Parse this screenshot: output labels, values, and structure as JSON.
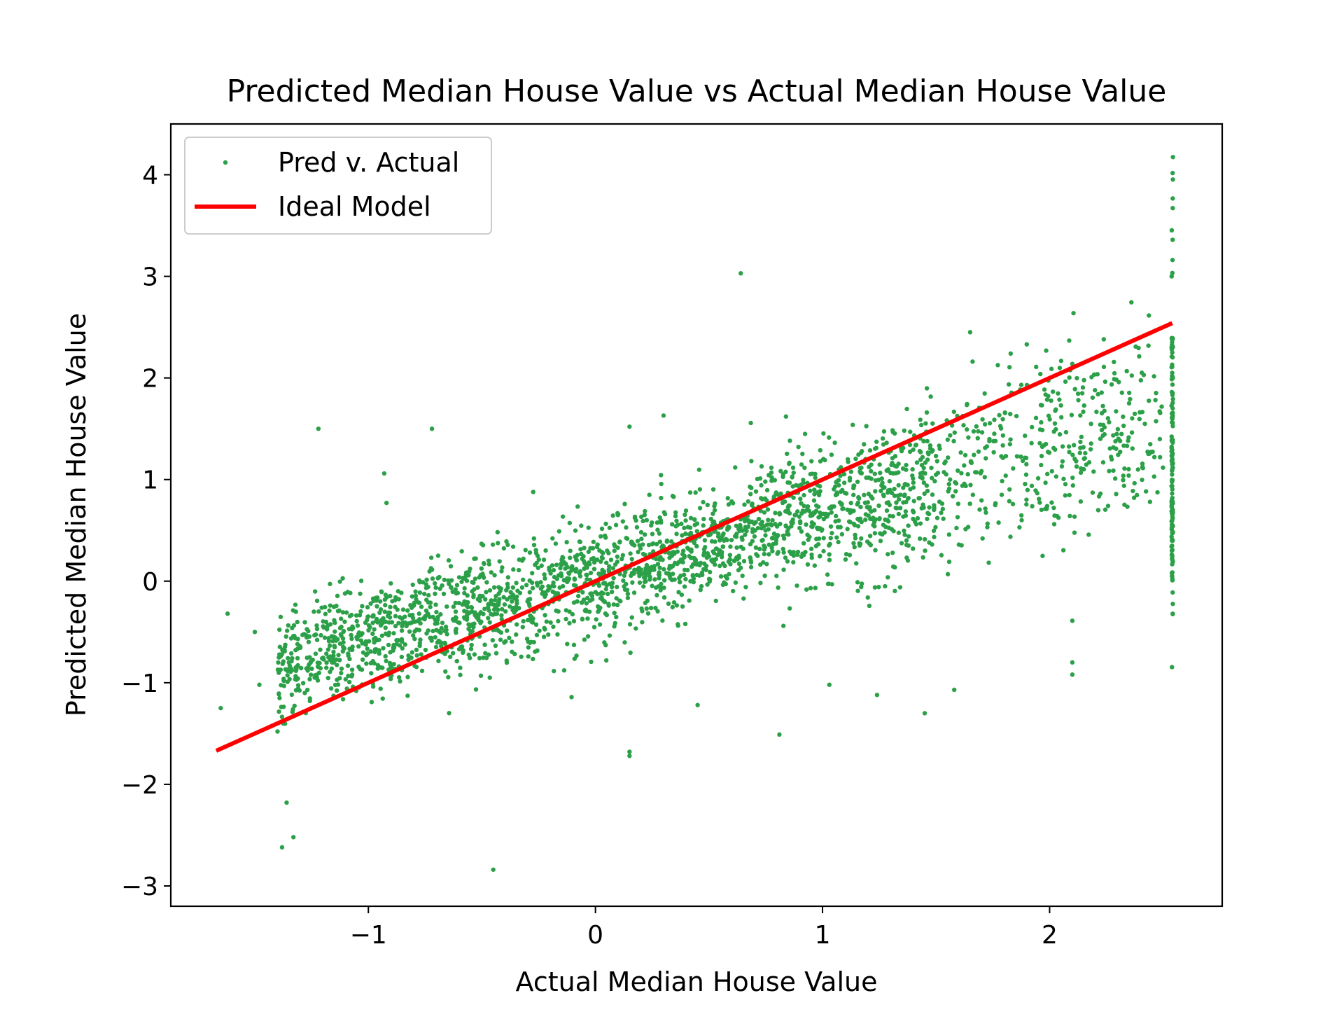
{
  "chart_data": {
    "type": "scatter",
    "title": "Predicted Median House Value vs Actual Median House Value",
    "xlabel": "Actual Median House Value",
    "ylabel": "Predicted Median House Value",
    "xlim": [
      -1.87,
      2.76
    ],
    "ylim": [
      -3.2,
      4.5
    ],
    "xticks": [
      -1,
      0,
      1,
      2
    ],
    "yticks": [
      -3,
      -2,
      -1,
      0,
      1,
      2,
      3,
      4
    ],
    "xtick_labels": [
      "−1",
      "0",
      "1",
      "2"
    ],
    "ytick_labels": [
      "−3",
      "−2",
      "−1",
      "0",
      "1",
      "2",
      "3",
      "4"
    ],
    "grid": false,
    "legend_position": "top-left",
    "series": [
      {
        "name": "Pred v. Actual",
        "kind": "scatter",
        "color": "#2ca048",
        "description_cloud": {
          "x_range": [
            -1.67,
            2.54
          ],
          "trend": "y ≈ 0.6x + 0.05 with spread increasing toward high x",
          "capped_column_x": 2.54,
          "capped_column_y_range": [
            -0.85,
            4.18
          ]
        },
        "points": [
          [
            -1.65,
            -1.25
          ],
          [
            -1.62,
            -0.32
          ],
          [
            -1.5,
            -0.5
          ],
          [
            -1.48,
            -1.02
          ],
          [
            -1.4,
            -1.48
          ],
          [
            -1.38,
            -2.62
          ],
          [
            -1.36,
            -2.18
          ],
          [
            -1.33,
            -2.52
          ],
          [
            -1.22,
            1.5
          ],
          [
            -0.93,
            1.06
          ],
          [
            -0.92,
            0.77
          ],
          [
            -0.72,
            1.5
          ],
          [
            -0.45,
            -2.84
          ],
          [
            0.15,
            1.52
          ],
          [
            0.15,
            -1.68
          ],
          [
            0.15,
            -1.72
          ],
          [
            0.3,
            1.63
          ],
          [
            0.64,
            3.03
          ],
          [
            1.65,
            2.45
          ],
          [
            1.45,
            -1.3
          ],
          [
            1.58,
            -1.07
          ],
          [
            1.24,
            -1.12
          ],
          [
            1.03,
            -1.02
          ],
          [
            0.81,
            -1.51
          ],
          [
            0.45,
            -1.22
          ],
          [
            2.1,
            -0.8
          ],
          [
            2.1,
            -0.92
          ],
          [
            2.1,
            -0.39
          ],
          [
            1.9,
            1.93
          ],
          [
            2.05,
            1.73
          ],
          [
            2.35,
            1.75
          ]
        ]
      },
      {
        "name": "Ideal Model",
        "kind": "line",
        "color": "#ff0000",
        "x": [
          -1.67,
          2.54
        ],
        "y": [
          -1.67,
          2.54
        ]
      }
    ]
  }
}
